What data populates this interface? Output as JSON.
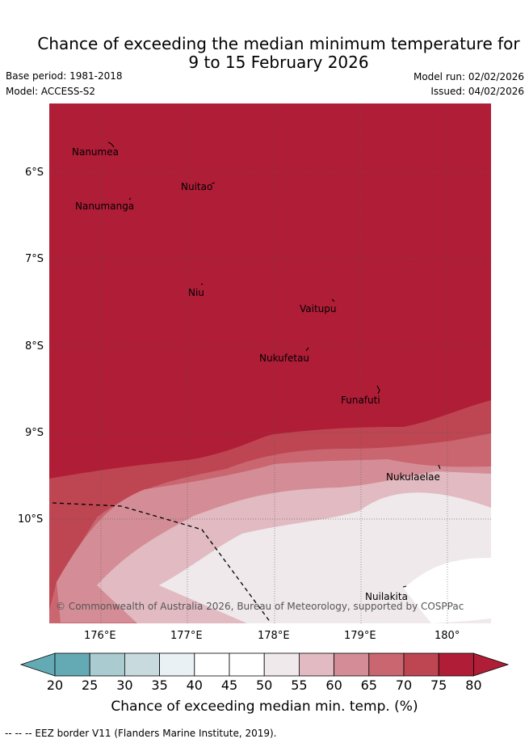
{
  "title_line1": "Chance of exceeding the median minimum temperature for",
  "title_line2": "9 to 15 February 2026",
  "base_period": "Base period: 1981-2018",
  "model": "Model: ACCESS-S2",
  "model_run": "Model run: 02/02/2026",
  "issued": "Issued: 04/02/2026",
  "map": {
    "lon_ticks": [
      "176°E",
      "177°E",
      "178°E",
      "179°E",
      "180°"
    ],
    "lat_ticks": [
      "6°S",
      "7°S",
      "8°S",
      "9°S",
      "10°S"
    ],
    "places": [
      {
        "name": "Nanumea"
      },
      {
        "name": "Nuitao"
      },
      {
        "name": "Nanumanga"
      },
      {
        "name": "Niu"
      },
      {
        "name": "Vaitupu"
      },
      {
        "name": "Nukufetau"
      },
      {
        "name": "Funafuti"
      },
      {
        "name": "Nukulaelae"
      },
      {
        "name": "Nuilakita"
      }
    ],
    "copyright": "© Commonwealth of Australia 2026, Bureau of Meteorology, supported by COSPPac"
  },
  "colorbar": {
    "labels": [
      "20",
      "25",
      "30",
      "35",
      "40",
      "45",
      "50",
      "55",
      "60",
      "65",
      "70",
      "75",
      "80"
    ],
    "colors": [
      "#64aab5",
      "#8dbac4",
      "#aacbd0",
      "#c8dade",
      "#e9f1f4",
      "#ffffff",
      "#ffffff",
      "#efe9ec",
      "#e1bbc1",
      "#d48d96",
      "#c96670",
      "#be4652",
      "#b01d37"
    ],
    "title": "Chance of exceeding median min. temp. (%)"
  },
  "footer": "--  --  -- EEZ border V11 (Flanders Marine Institute, 2019)."
}
